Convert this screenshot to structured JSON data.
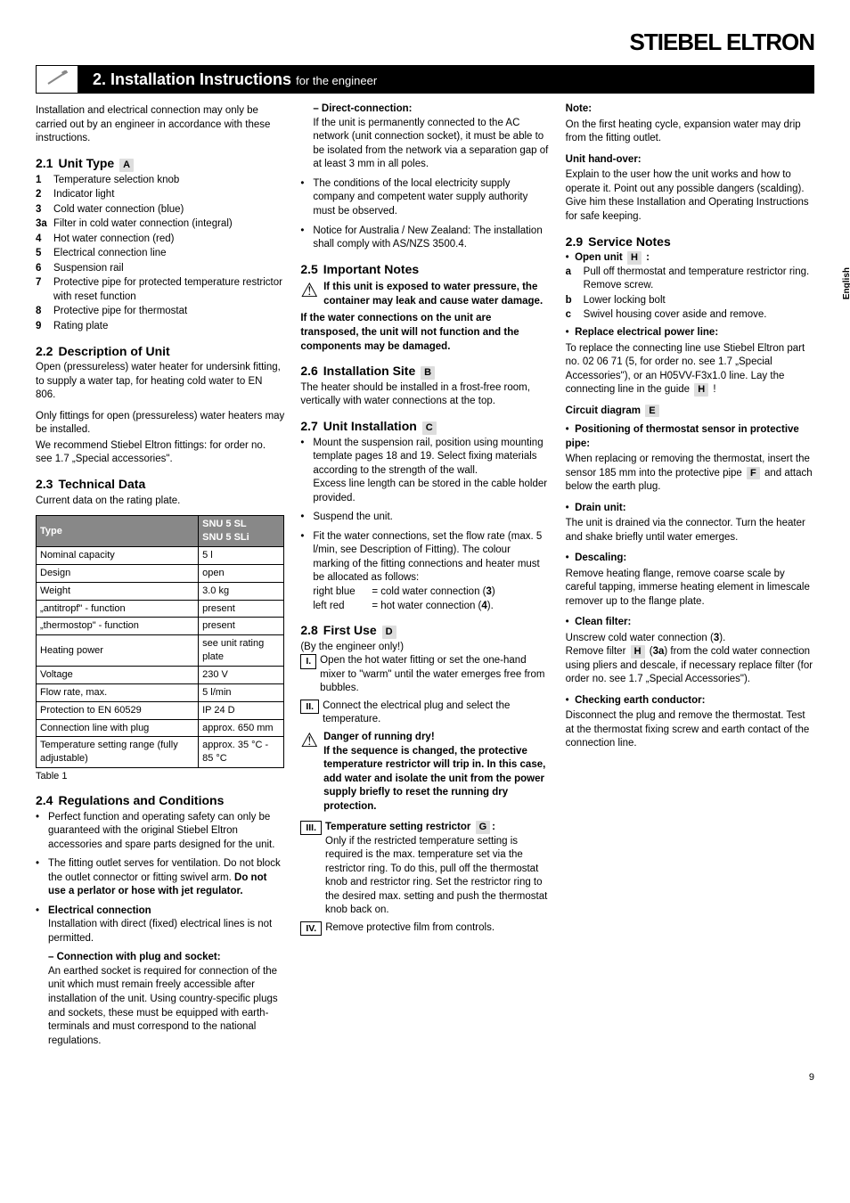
{
  "brand": "STIEBEL ELTRON",
  "titlebar": {
    "num": "2.",
    "title": "Installation Instructions",
    "subtitle": "for the engineer"
  },
  "sidetab": "English",
  "pagenum": "9",
  "intro": "Installation and electrical connection may only be carried out by an engineer in accordance with these instructions.",
  "s21": {
    "num": "2.1",
    "title": "Unit Type",
    "tag": "A",
    "items": [
      {
        "n": "1",
        "t": "Temperature selection knob"
      },
      {
        "n": "2",
        "t": "Indicator light"
      },
      {
        "n": "3",
        "t": "Cold water connection (blue)"
      },
      {
        "n": "3a",
        "t": "Filter in cold water connection (integral)"
      },
      {
        "n": "4",
        "t": "Hot water connection (red)"
      },
      {
        "n": "5",
        "t": "Electrical connection line"
      },
      {
        "n": "6",
        "t": "Suspension rail"
      },
      {
        "n": "7",
        "t": "Protective pipe for protected temperature restrictor with reset function"
      },
      {
        "n": "8",
        "t": "Protective pipe for thermostat"
      },
      {
        "n": "9",
        "t": "Rating plate"
      }
    ]
  },
  "s22": {
    "num": "2.2",
    "title": "Description of Unit",
    "p1": "Open (pressureless) water heater for undersink fitting, to supply a water tap, for heating cold water to EN 806.",
    "p2": "Only fittings for open (pressureless) water heaters may be installed.",
    "p3": "We recommend Stiebel Eltron fittings: for order no. see 1.7 „Special accessories\"."
  },
  "s23": {
    "num": "2.3",
    "title": "Technical Data",
    "lead": "Current data on the rating plate.",
    "header_type": "Type",
    "header_val": "SNU 5 SL\nSNU 5 SLi",
    "rows": [
      [
        "Nominal capacity",
        "5 l"
      ],
      [
        "Design",
        "open"
      ],
      [
        "Weight",
        "3.0 kg"
      ],
      [
        "„antitropf\" - function",
        "present"
      ],
      [
        "„thermostop\" - function",
        "present"
      ],
      [
        "Heating power",
        "see unit rating plate"
      ],
      [
        "Voltage",
        "230 V"
      ],
      [
        "Flow rate, max.",
        "5 l/min"
      ],
      [
        "Protection to EN 60529",
        "IP 24 D"
      ],
      [
        "Connection line with plug",
        "approx. 650 mm"
      ],
      [
        "Temperature setting range (fully adjustable)",
        "approx. 35 °C - 85 °C"
      ]
    ],
    "caption": "Table 1"
  },
  "s24": {
    "num": "2.4",
    "title": "Regulations and Conditions",
    "b1": "Perfect function and operating safety can only be guaranteed with the original Stiebel Eltron accessories and spare parts designed for the unit.",
    "b2a": "The fitting outlet serves for ventilation. Do not block the outlet connector or fitting swivel arm. ",
    "b2b": "Do not use a perlator or hose with jet regulator.",
    "b3_title": "Electrical connection",
    "b3_p": "Installation with direct (fixed) electrical lines is not permitted.",
    "b3_sub1_title": "– Connection with plug and socket:",
    "b3_sub1_p": "An earthed socket is required for connection of the unit which must remain freely accessible after installation of the unit. Using country-specific plugs and sockets, these must be equipped with earth-terminals and must correspond to the national regulations.",
    "b3_sub2_title": "– Direct-connection:",
    "b3_sub2_p": "If the unit is permanently connected to the AC network (unit connection socket), it must be able to be isolated from the network via a separation gap of at least 3 mm in all poles.",
    "b4": "The conditions of the local electricity supply company and competent water supply authority must be observed.",
    "b5": "Notice for Australia / New Zealand: The installation shall comply with AS/NZS 3500.4."
  },
  "s25": {
    "num": "2.5",
    "title": "Important Notes",
    "warn": "If this unit is exposed to water pressure, the container may leak and cause water damage.",
    "note": "If the water connections on the unit are transposed, the unit will not function and the components may be damaged."
  },
  "s26": {
    "num": "2.6",
    "title": "Installation Site",
    "tag": "B",
    "p": "The heater should be installed in a frost-free room, vertically with water connections at the top."
  },
  "s27": {
    "num": "2.7",
    "title": "Unit Installation",
    "tag": "C",
    "b1": "Mount the suspension rail, position using mounting template pages 18 and 19. Select fixing materials according to the strength of the wall.",
    "b1b": "Excess line length can be stored in the cable holder provided.",
    "b2": "Suspend the unit.",
    "b3": "Fit the water connections, set the flow rate (max. 5 l/min, see Description of Fitting). The colour marking of the fitting connections and heater must be allocated as follows:",
    "b3_r1a": "right blue",
    "b3_r1b": "=  cold water connection (",
    "b3_r1c": "3",
    "b3_r1d": ")",
    "b3_r2a": "left red",
    "b3_r2b": "=  hot water connection (",
    "b3_r2c": "4",
    "b3_r2d": ")."
  },
  "s28": {
    "num": "2.8",
    "title": "First Use",
    "tag": "D",
    "lead": "(By the engineer only!)",
    "s1": "Open the hot water fitting or set the one-hand mixer to \"warm\" until the water emerges free from bubbles.",
    "s2": "Connect the electrical plug and select the temperature.",
    "warn_t": "Danger of running dry!",
    "warn_p": "If the sequence is changed, the protective temperature restrictor will trip in. In this case, add water and isolate the unit from the power supply briefly to reset the running dry protection.",
    "s3_t": "Temperature setting restrictor",
    "s3_tag": "G",
    "s3_colon": ":",
    "s3_p": "Only if the restricted temperature setting is required is the max. temperature set via the restrictor ring. To do this, pull off the thermostat knob and restrictor ring. Set the restrictor ring to the desired max. setting and push the thermostat knob back on.",
    "s4": "Remove protective film from controls.",
    "note_t": "Note:",
    "note_p": "On the first heating cycle, expansion water may drip from the fitting outlet.",
    "handover_t": "Unit hand-over:",
    "handover_p": "Explain to the user how the unit works and how to operate it. Point out any possible dangers (scalding). Give him these Installation and Operating Instructions for safe keeping."
  },
  "s29": {
    "num": "2.9",
    "title": "Service Notes",
    "open_t": "Open unit",
    "open_tag": "H",
    "open_colon": ":",
    "a": "Pull off thermostat and temperature restrictor ring. Remove screw.",
    "b": "Lower locking bolt",
    "c": "Swivel housing cover aside and remove.",
    "repl_t": "Replace electrical power line:",
    "repl_p1": "To replace the connecting line use Stiebel Eltron part no. 02 06 71 (5, for order no. see 1.7 „Special Accessories\"), or an H05VV-F3x1.0 line. Lay the connecting line in the guide ",
    "repl_tag": "H",
    "repl_excl": " !",
    "circuit_t": "Circuit diagram",
    "circuit_tag": "E",
    "pos_t": "Positioning of thermostat sensor in protective pipe:",
    "pos_p1": "When replacing or removing the thermostat, insert the sensor 185 mm into the protective pipe ",
    "pos_tag": "F",
    "pos_p2": " and attach below the earth plug.",
    "drain_t": "Drain unit:",
    "drain_p": "The unit is drained via the connector. Turn the heater and shake briefly until water emerges.",
    "desc_t": "Descaling:",
    "desc_p": "Remove heating flange, remove coarse scale by careful tapping, immerse heating element in limescale remover up to the flange plate.",
    "clean_t": "Clean filter:",
    "clean_p1": "Unscrew cold water connection (",
    "clean_3": "3",
    "clean_p1b": ").",
    "clean_p2a": "Remove filter ",
    "clean_tag": "H",
    "clean_p2b": " (",
    "clean_3a": "3a",
    "clean_p2c": ") from the cold water connection using pliers and descale, if necessary replace filter (for order no. see 1.7 „Special Accessories\").",
    "earth_t": "Checking earth conductor:",
    "earth_p": "Disconnect the plug and remove the thermostat. Test at the thermostat fixing screw and earth contact of the connection line."
  }
}
